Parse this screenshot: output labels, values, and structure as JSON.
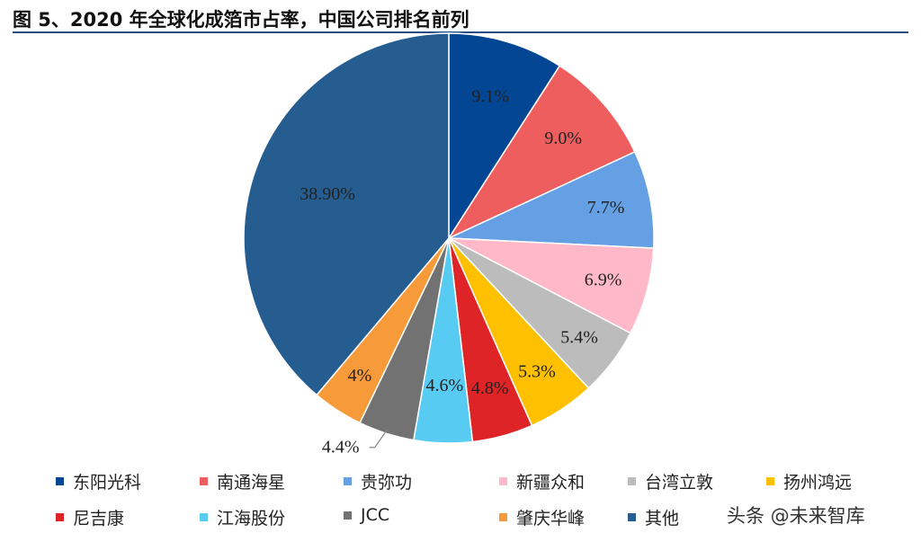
{
  "title": "图 5、2020 年全球化成箔市占率，中国公司排名前列",
  "watermark": "头条 @未来智库",
  "chart_data": {
    "type": "pie",
    "title": "",
    "slices": [
      {
        "name": "东阳光科",
        "value": 9.1,
        "label": "9.1%",
        "color": "#034694"
      },
      {
        "name": "南通海星",
        "value": 9.0,
        "label": "9.0%",
        "color": "#ef5e5f"
      },
      {
        "name": "贵弥功",
        "value": 7.7,
        "label": "7.7%",
        "color": "#64a0e3"
      },
      {
        "name": "新疆众和",
        "value": 6.9,
        "label": "6.9%",
        "color": "#ffb8c8"
      },
      {
        "name": "台湾立敦",
        "value": 5.4,
        "label": "5.4%",
        "color": "#bcbcbc"
      },
      {
        "name": "扬州鸿远",
        "value": 5.3,
        "label": "5.3%",
        "color": "#ffc000"
      },
      {
        "name": "尼吉康",
        "value": 4.8,
        "label": "4.8%",
        "color": "#de2427"
      },
      {
        "name": "江海股份",
        "value": 4.6,
        "label": "4.6%",
        "color": "#58cbf2"
      },
      {
        "name": "JCC",
        "value": 4.4,
        "label": "4.4%",
        "color": "#727272"
      },
      {
        "name": "肇庆华峰",
        "value": 4.0,
        "label": "4%",
        "color": "#f79a3a"
      },
      {
        "name": "其他",
        "value": 38.9,
        "label": "38.90%",
        "color": "#255d91"
      }
    ],
    "legend": {
      "position": "bottom"
    }
  }
}
